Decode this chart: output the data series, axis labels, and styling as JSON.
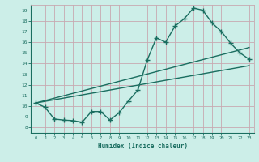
{
  "title": "",
  "xlabel": "Humidex (Indice chaleur)",
  "bg_color": "#cceee8",
  "grid_color": "#c8a8b0",
  "line_color": "#1a6e60",
  "xlim": [
    -0.5,
    23.5
  ],
  "ylim": [
    7.5,
    19.5
  ],
  "xticks": [
    0,
    1,
    2,
    3,
    4,
    5,
    6,
    7,
    8,
    9,
    10,
    11,
    12,
    13,
    14,
    15,
    16,
    17,
    18,
    19,
    20,
    21,
    22,
    23
  ],
  "yticks": [
    8,
    9,
    10,
    11,
    12,
    13,
    14,
    15,
    16,
    17,
    18,
    19
  ],
  "line1_x": [
    0,
    1,
    2,
    3,
    4,
    5,
    6,
    7,
    8,
    9,
    10,
    11,
    12,
    13,
    14,
    15,
    16,
    17,
    18,
    19,
    20,
    21,
    22,
    23
  ],
  "line1_y": [
    10.3,
    9.9,
    8.8,
    8.7,
    8.65,
    8.5,
    9.5,
    9.5,
    8.7,
    9.4,
    10.5,
    11.5,
    14.3,
    16.4,
    16.0,
    17.5,
    18.2,
    19.2,
    19.0,
    17.8,
    17.0,
    15.9,
    15.0,
    14.4
  ],
  "line2_x": [
    0,
    23
  ],
  "line2_y": [
    10.3,
    13.8
  ],
  "line3_x": [
    0,
    23
  ],
  "line3_y": [
    10.3,
    15.5
  ],
  "markersize": 2.5,
  "linewidth": 1.0
}
